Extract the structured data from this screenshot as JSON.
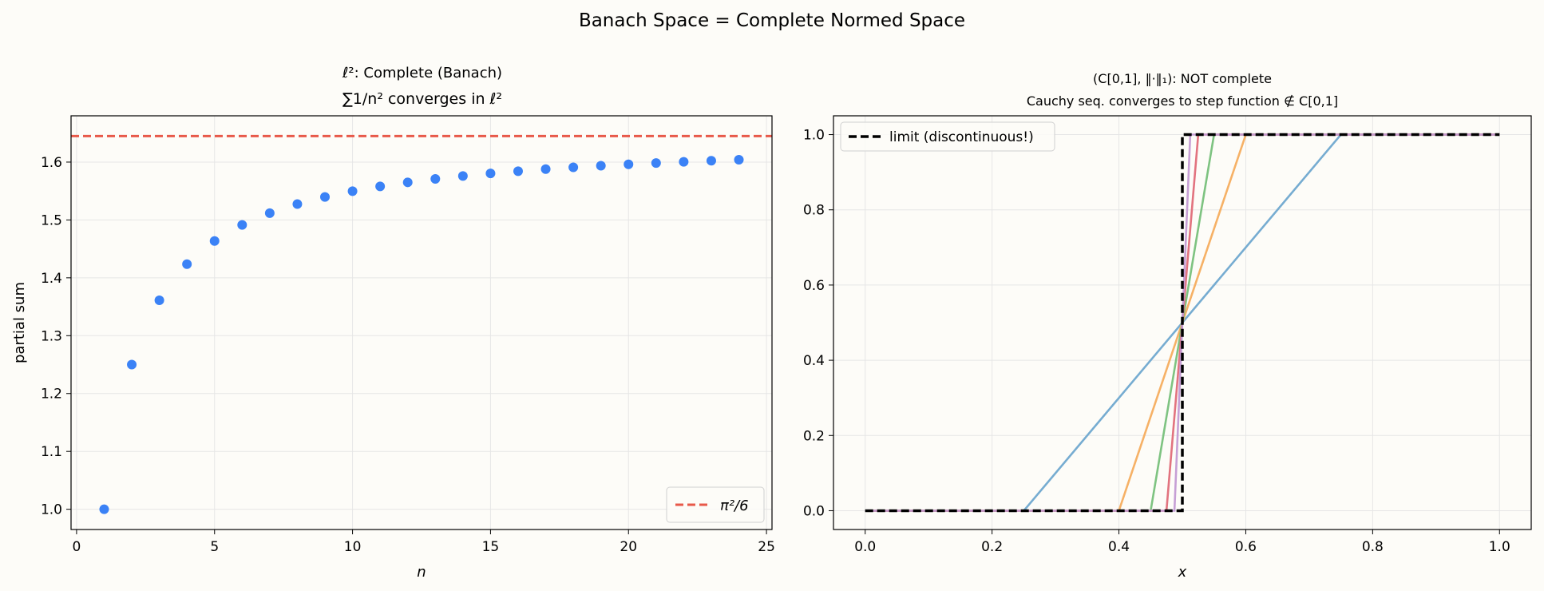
{
  "figure": {
    "suptitle": "Banach Space = Complete Normed Space",
    "background": "#fdfcf8"
  },
  "chart_data": [
    {
      "type": "scatter",
      "title_line1": "ℓ²: Complete (Banach)",
      "title_line2": "∑1/n² converges in ℓ²",
      "xlabel": "n",
      "ylabel": "partial sum",
      "xlim": [
        -0.2,
        25.2
      ],
      "ylim": [
        0.965,
        1.68
      ],
      "xticks": [
        0,
        5,
        10,
        15,
        20,
        25
      ],
      "yticks": [
        1.0,
        1.1,
        1.2,
        1.3,
        1.4,
        1.5,
        1.6
      ],
      "grid": true,
      "legend_position": "lower-right",
      "series": [
        {
          "color": "#3b82f6",
          "x": [
            1,
            2,
            3,
            4,
            5,
            6,
            7,
            8,
            9,
            10,
            11,
            12,
            13,
            14,
            15,
            16,
            17,
            18,
            19,
            20,
            21,
            22,
            23,
            24
          ],
          "y": [
            1.0,
            1.25,
            1.3611,
            1.4236,
            1.4636,
            1.4914,
            1.5118,
            1.5274,
            1.5398,
            1.5498,
            1.558,
            1.565,
            1.5709,
            1.576,
            1.5804,
            1.5843,
            1.5878,
            1.5909,
            1.5937,
            1.5962,
            1.5984,
            1.6005,
            1.6024,
            1.6041
          ]
        }
      ],
      "hline": {
        "y": 1.6449,
        "name": "π²/6",
        "color": "#e8594a",
        "style": "dashed"
      }
    },
    {
      "type": "line",
      "title_line1": "(C[0,1], ‖·‖₁): NOT complete",
      "title_line2": "Cauchy seq. converges to step function ∉ C[0,1]",
      "xlabel": "x",
      "ylabel": "",
      "xlim": [
        -0.05,
        1.05
      ],
      "ylim": [
        -0.05,
        1.05
      ],
      "xticks": [
        0.0,
        0.2,
        0.4,
        0.6,
        0.8,
        1.0
      ],
      "yticks": [
        0.0,
        0.2,
        0.4,
        0.6,
        0.8,
        1.0
      ],
      "grid": true,
      "legend_position": "upper-left",
      "ramps": [
        {
          "half_width": 0.25,
          "color": "#6fa8cf"
        },
        {
          "half_width": 0.1,
          "color": "#f6ad5e"
        },
        {
          "half_width": 0.05,
          "color": "#77c07a"
        },
        {
          "half_width": 0.025,
          "color": "#e06b78"
        },
        {
          "half_width": 0.0125,
          "color": "#c39ad3"
        }
      ],
      "limit": {
        "name": "limit (discontinuous!)",
        "x": [
          0.0,
          0.5,
          0.5,
          1.0
        ],
        "y": [
          0.0,
          0.0,
          1.0,
          1.0
        ],
        "color": "#000000",
        "style": "dashed"
      }
    }
  ]
}
